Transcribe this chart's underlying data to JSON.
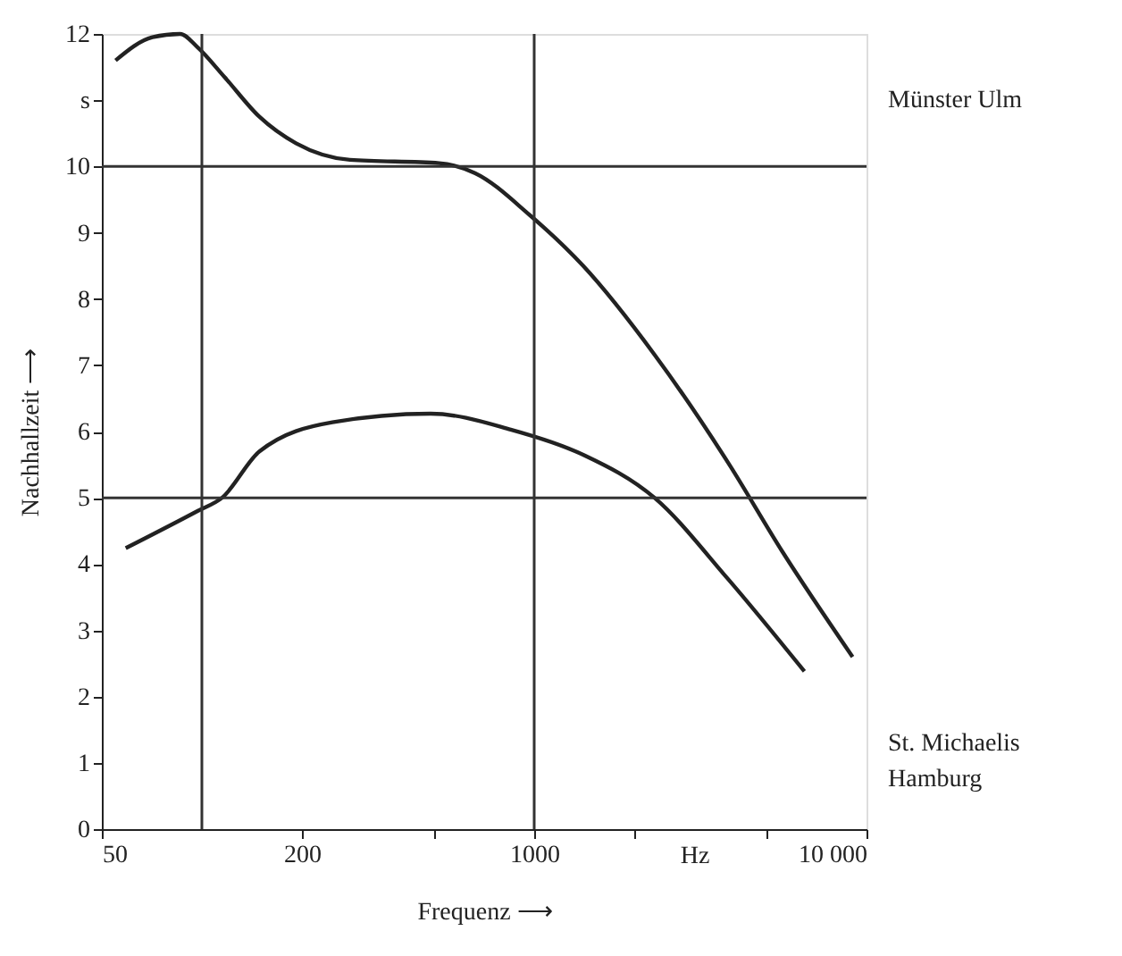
{
  "chart_data": {
    "type": "line",
    "xlabel": "Frequenz ⟶",
    "ylabel": "Nachhallzeit ⟶",
    "log": "x",
    "grid": false,
    "legend": false,
    "marker": "none",
    "line_style": "solid",
    "xlim": [
      50,
      10000
    ],
    "xticks": [
      50,
      200,
      {
        "value": 500,
        "label": null
      },
      1000,
      {
        "value": 2000,
        "label": null
      },
      {
        "value": 5000,
        "label": null
      },
      {
        "value": 10000,
        "label": "10 000"
      }
    ],
    "ylim": [
      0,
      12
    ],
    "yticks": [
      0,
      1,
      2,
      3,
      4,
      5,
      6,
      7,
      8,
      9,
      10,
      {
        "value": 11,
        "label": "s"
      },
      12
    ],
    "annotations": [
      "Hz"
    ],
    "ref_lines": [
      {
        "axis": "x",
        "value": 100,
        "label": null
      },
      {
        "axis": "x",
        "value": 1000,
        "label": null
      },
      {
        "axis": "y",
        "value": 5,
        "label": null
      },
      {
        "axis": "y",
        "value": 10,
        "label": null
      }
    ],
    "series": [
      {
        "name": "Münster Ulm",
        "color": "#222222",
        "x": [
          55,
          71,
          86,
          97,
          117,
          149,
          192,
          279,
          518,
          663,
          968,
          1404,
          2302,
          3822,
          5579,
          9080
        ],
        "values": [
          11.6,
          11.95,
          12.0,
          11.8,
          11.35,
          10.75,
          10.35,
          10.1,
          10.05,
          9.9,
          9.27,
          8.5,
          7.16,
          5.54,
          4.19,
          2.6
        ]
      },
      {
        "name": "St. Michaelis\nHamburg",
        "color": "#222222",
        "x": [
          59,
          97,
          115,
          149,
          247,
          488,
          850,
          1404,
          2302,
          3822,
          6502
        ],
        "values": [
          4.24,
          4.8,
          5.0,
          5.7,
          6.14,
          6.27,
          6.03,
          5.65,
          5.0,
          3.78,
          2.38
        ]
      }
    ]
  }
}
